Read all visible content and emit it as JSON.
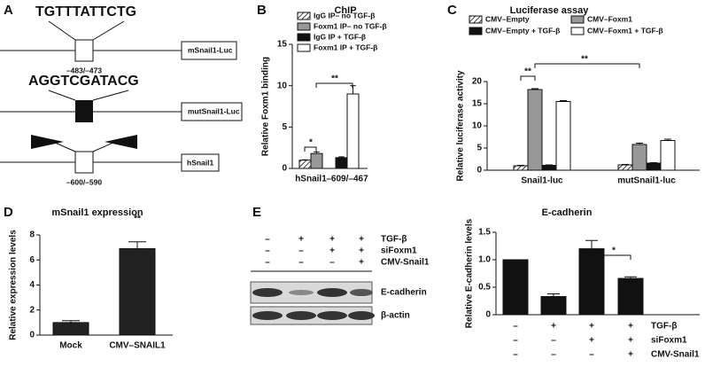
{
  "promoter_diagram": {
    "panel": "A",
    "constructs": [
      {
        "sequence": "TGTTTATTCTG",
        "position": "–483/–473",
        "name": "mSnail1-Luc"
      },
      {
        "sequence": "AGGTCGATACG",
        "name": "mutSnail1-Luc"
      },
      {
        "position": "–600/–590",
        "name": "hSnail1"
      }
    ]
  },
  "western_blot": {
    "panel": "E",
    "conditions": [
      {
        "name": "TGF-β",
        "signs": [
          "–",
          "+",
          "+",
          "+"
        ]
      },
      {
        "name": "siFoxm1",
        "signs": [
          "–",
          "–",
          "+",
          "+"
        ]
      },
      {
        "name": "CMV-Snail1",
        "signs": [
          "–",
          "–",
          "–",
          "+"
        ]
      }
    ],
    "bands": [
      "E-cadherin",
      "β-actin"
    ]
  },
  "chart_data": [
    {
      "type": "bar",
      "panel": "B",
      "title": "ChIP",
      "ylabel": "Relative Foxm1 binding",
      "categories": [
        "hSnail1",
        "–609/–467"
      ],
      "series": [
        {
          "name": "IgG IP– no TGF-β",
          "color": "#ffffff",
          "hatch": true,
          "values": [
            1.0,
            null
          ],
          "errors": [
            0.05,
            null
          ]
        },
        {
          "name": "Foxm1 IP– no TGF-β",
          "color": "#999999",
          "values": [
            1.8,
            null
          ],
          "errors": [
            0.2,
            null
          ]
        },
        {
          "name": "IgG IP + TGF-β",
          "color": "#111111",
          "values": [
            null,
            1.3
          ],
          "errors": [
            null,
            0.1
          ]
        },
        {
          "name": "Foxm1 IP + TGF-β",
          "color": "#ffffff",
          "values": [
            null,
            9.0
          ],
          "errors": [
            null,
            1.0
          ]
        }
      ],
      "ylim": [
        0,
        15
      ],
      "yticks": [
        0,
        5,
        10,
        15
      ],
      "annotations": [
        "*",
        "**"
      ]
    },
    {
      "type": "bar",
      "panel": "C",
      "title": "Luciferase assay",
      "ylabel": "Relative luciferase activity",
      "categories": [
        "Snail1-luc",
        "mutSnail1-luc"
      ],
      "series": [
        {
          "name": "CMV–Empty",
          "color": "#ffffff",
          "hatch": true,
          "values": [
            1.0,
            1.2
          ],
          "errors": [
            0.1,
            0.1
          ]
        },
        {
          "name": "CMV–Foxm1",
          "color": "#999999",
          "values": [
            18.2,
            5.8
          ],
          "errors": [
            0.2,
            0.3
          ]
        },
        {
          "name": "CMV–Empty + TGF-β",
          "color": "#111111",
          "values": [
            1.1,
            1.6
          ],
          "errors": [
            0.1,
            0.1
          ]
        },
        {
          "name": "CMV–Foxm1 + TGF-β",
          "color": "#ffffff",
          "values": [
            15.5,
            6.7
          ],
          "errors": [
            0.2,
            0.3
          ]
        }
      ],
      "ylim": [
        0,
        20
      ],
      "yticks": [
        0,
        5,
        10,
        15,
        20
      ],
      "annotations": [
        "**",
        "**"
      ]
    },
    {
      "type": "bar",
      "panel": "D",
      "title": "mSnail1 expression",
      "ylabel": "Relative expression levels",
      "categories": [
        "Mock",
        "CMV–SNAIL1"
      ],
      "series": [
        {
          "color": "#222222",
          "values": [
            1.0,
            6.9
          ],
          "errors": [
            0.15,
            0.55
          ]
        }
      ],
      "ylim": [
        0,
        8
      ],
      "yticks": [
        0,
        2,
        4,
        6,
        8
      ],
      "annotations": [
        "**"
      ]
    },
    {
      "type": "bar",
      "title": "E-cadherin",
      "ylabel": "Relative E-cadherin levels",
      "categories": [
        null,
        null,
        null,
        null
      ],
      "series": [
        {
          "color": "#111111",
          "values": [
            1.0,
            0.33,
            1.2,
            0.66
          ],
          "errors": [
            0,
            0.05,
            0.15,
            0.03
          ]
        }
      ],
      "ylim": [
        0,
        1.5
      ],
      "yticks": [
        0,
        0.5,
        {
          "value": 1.0,
          "label": "1.0"
        },
        1.5
      ],
      "annotations": [
        "*"
      ],
      "conditions": [
        {
          "name": "TGF-β",
          "signs": [
            "–",
            "+",
            "+",
            "+"
          ]
        },
        {
          "name": "siFoxm1",
          "signs": [
            "–",
            "–",
            "+",
            "+"
          ]
        },
        {
          "name": "CMV-Snail1",
          "signs": [
            "–",
            "–",
            "–",
            "+"
          ]
        }
      ]
    }
  ]
}
